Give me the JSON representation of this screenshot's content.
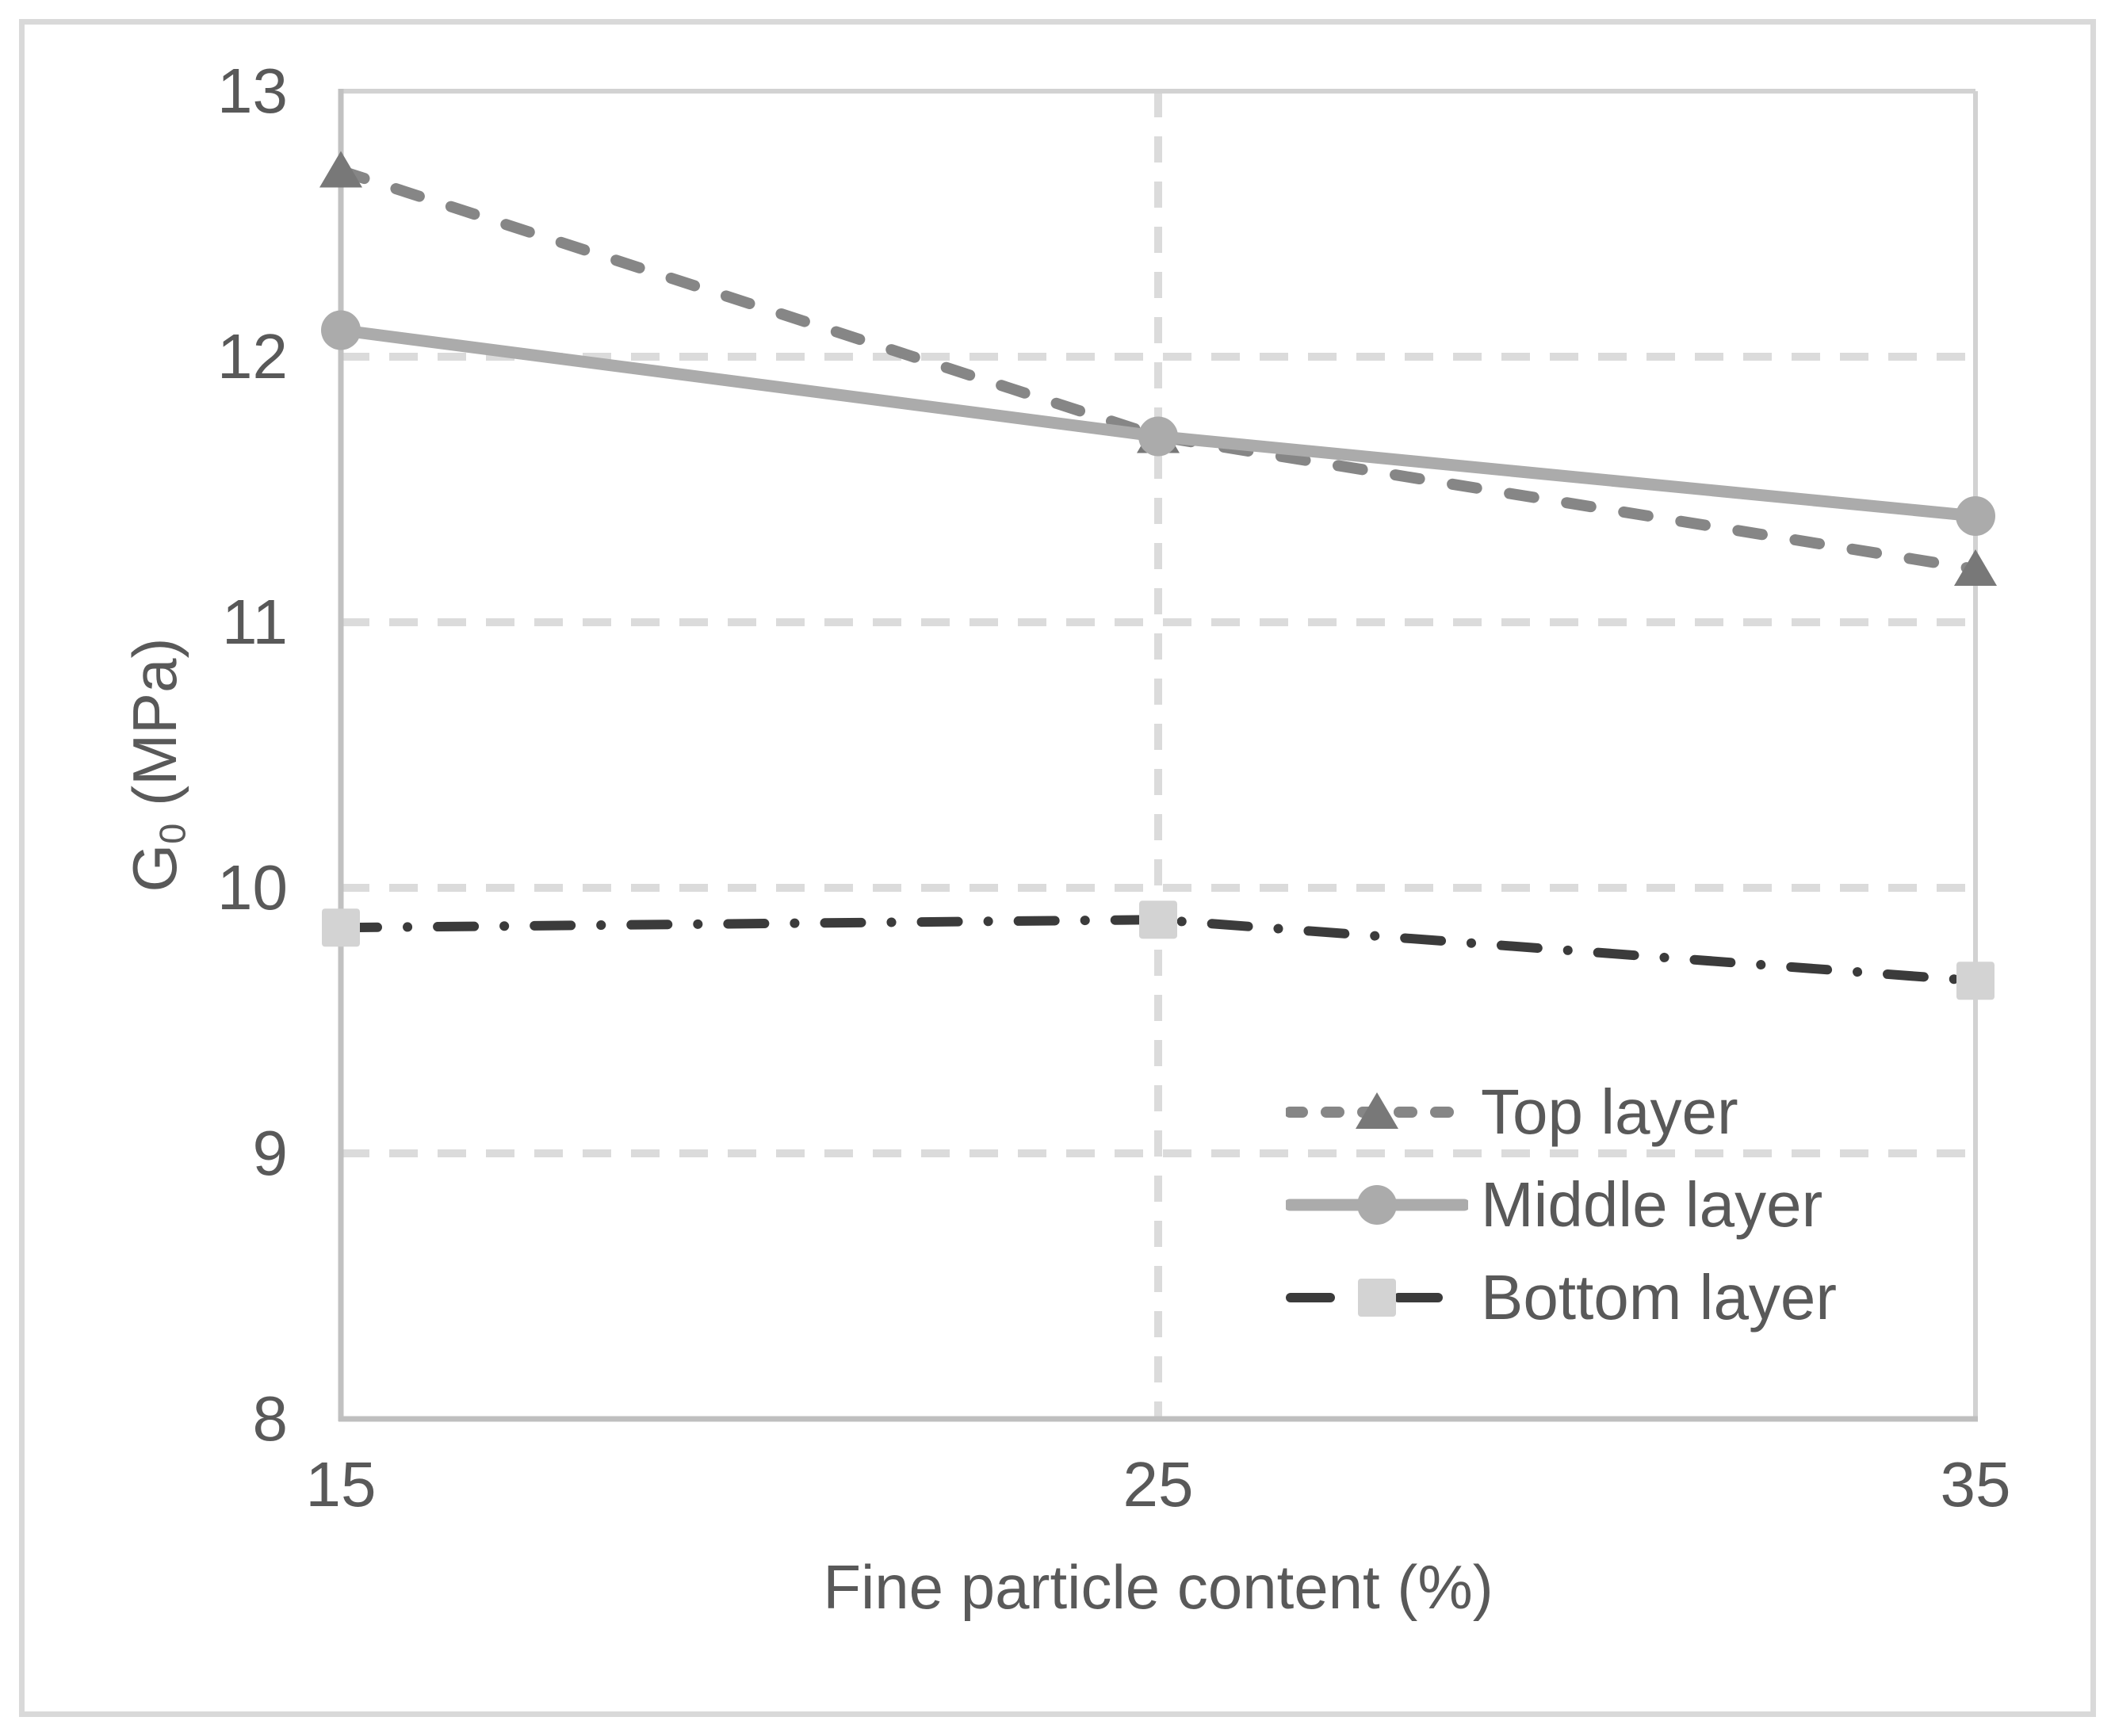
{
  "chart_data": {
    "type": "line",
    "title": "",
    "xlabel": "Fine particle content (%)",
    "ylabel": {
      "main": "G",
      "sub": "0",
      "unit": "(MPa)"
    },
    "x": [
      15,
      25,
      35
    ],
    "x_ticks": [
      15,
      25,
      35
    ],
    "y_ticks": [
      13,
      12,
      11,
      10,
      9,
      8
    ],
    "xlim": [
      15,
      35
    ],
    "ylim": [
      8,
      13
    ],
    "grid": {
      "horizontal": "dashed",
      "vertical_at": [
        25
      ]
    },
    "legend_position": "inside-lower-right",
    "series": [
      {
        "name": "Top layer",
        "values": [
          12.7,
          11.7,
          11.2
        ],
        "line_style": "dashed",
        "line_color": "#868686",
        "line_width": 14,
        "marker": "triangle",
        "marker_color": "#787878"
      },
      {
        "name": "Middle layer",
        "values": [
          12.1,
          11.7,
          11.4
        ],
        "line_style": "solid",
        "line_color": "#ababab",
        "line_width": 15,
        "marker": "circle",
        "marker_color": "#ababab"
      },
      {
        "name": "Bottom layer",
        "values": [
          9.85,
          9.88,
          9.65
        ],
        "line_style": "dash-dot",
        "line_color": "#3b3b3b",
        "line_width": 12,
        "marker": "square",
        "marker_color": "#d3d3d3"
      }
    ]
  },
  "colors": {
    "text": "#595959",
    "grid": "#dbdbdb",
    "plot_border": "#d2d2d2",
    "axis_left": "#c1c1c1",
    "axis_bottom": "#bfbfbf",
    "figure_frame": "#d9d9d9"
  }
}
